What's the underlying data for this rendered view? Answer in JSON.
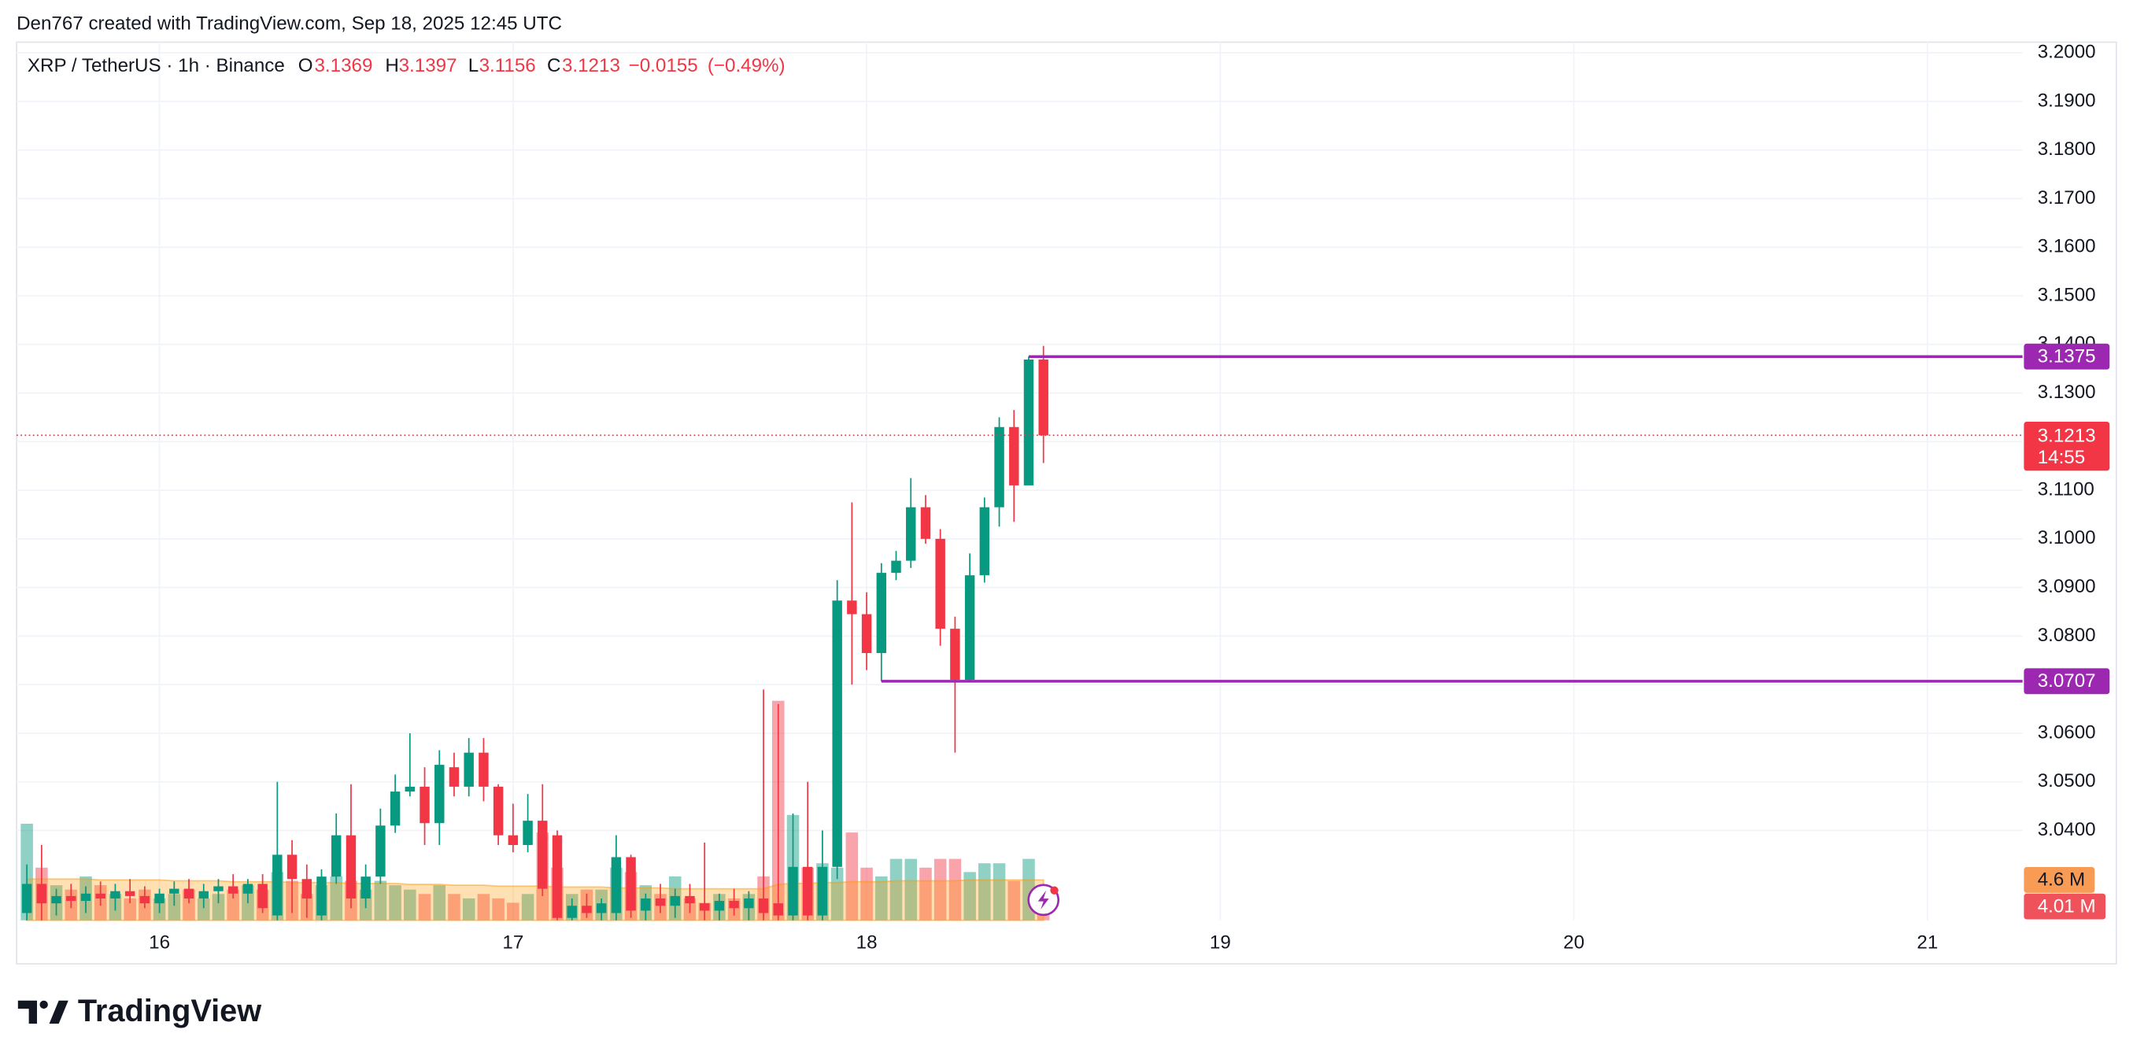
{
  "chart_data": {
    "type": "candlestick",
    "attribution": "Den767 created with TradingView.com, Sep 18, 2025 12:45 UTC",
    "title": "XRP / TetherUS · 1h · Binance",
    "legend": {
      "open_label": "O",
      "open": 3.1369,
      "high_label": "H",
      "high": 3.1397,
      "low_label": "L",
      "low": 3.1156,
      "close_label": "C",
      "close": 3.1213,
      "change": {
        "value": -0.0155,
        "label": "−0.0155"
      },
      "change_pct": {
        "value": -0.49,
        "label": "(−0.49%)"
      }
    },
    "x": [
      15.625,
      15.6667,
      15.7083,
      15.75,
      15.7917,
      15.8333,
      15.875,
      15.9167,
      15.9583,
      16,
      16.0417,
      16.0833,
      16.125,
      16.1667,
      16.2083,
      16.25,
      16.2917,
      16.3333,
      16.375,
      16.4167,
      16.4583,
      16.5,
      16.5417,
      16.5833,
      16.625,
      16.6667,
      16.7083,
      16.75,
      16.7917,
      16.8333,
      16.875,
      16.9167,
      16.9583,
      17,
      17.0417,
      17.0833,
      17.125,
      17.1667,
      17.2083,
      17.25,
      17.2917,
      17.3333,
      17.375,
      17.4167,
      17.4583,
      17.5,
      17.5417,
      17.5833,
      17.625,
      17.6667,
      17.7083,
      17.75,
      17.7917,
      17.8333,
      17.875,
      17.9167,
      17.9583,
      18,
      18.0417,
      18.0833,
      18.125,
      18.1667,
      18.2083,
      18.25,
      18.2917,
      18.3333,
      18.375,
      18.4167,
      18.4583,
      18.5
    ],
    "open": [
      3.023,
      3.029,
      3.025,
      3.0265,
      3.0255,
      3.027,
      3.026,
      3.0275,
      3.0265,
      3.025,
      3.027,
      3.028,
      3.026,
      3.0275,
      3.0285,
      3.027,
      3.029,
      3.0225,
      3.035,
      3.03,
      3.0225,
      3.0305,
      3.039,
      3.026,
      3.0305,
      3.041,
      3.048,
      3.049,
      3.0415,
      3.053,
      3.049,
      3.056,
      3.049,
      3.039,
      3.037,
      3.042,
      3.039,
      3.022,
      3.0245,
      3.023,
      3.023,
      3.0345,
      3.0235,
      3.026,
      3.0245,
      3.0265,
      3.025,
      3.0235,
      3.0255,
      3.024,
      3.026,
      3.025,
      3.0225,
      3.0325,
      3.0225,
      3.0325,
      3.0873,
      3.0845,
      3.0765,
      3.093,
      3.0955,
      3.1065,
      3.1,
      3.0815,
      3.071,
      3.0925,
      3.1065,
      3.123,
      3.111,
      3.1369
    ],
    "high": [
      3.033,
      3.037,
      3.028,
      3.029,
      3.0285,
      3.0295,
      3.029,
      3.03,
      3.0285,
      3.028,
      3.0295,
      3.03,
      3.029,
      3.03,
      3.031,
      3.03,
      3.031,
      3.05,
      3.038,
      3.033,
      3.032,
      3.0435,
      3.0495,
      3.033,
      3.0445,
      3.0515,
      3.06,
      3.053,
      3.0565,
      3.056,
      3.059,
      3.059,
      3.0495,
      3.0455,
      3.0475,
      3.0495,
      3.04,
      3.026,
      3.027,
      3.026,
      3.039,
      3.035,
      3.027,
      3.029,
      3.028,
      3.029,
      3.0375,
      3.027,
      3.028,
      3.0275,
      3.069,
      3.066,
      3.0435,
      3.05,
      3.04,
      3.0915,
      3.1075,
      3.089,
      3.095,
      3.0975,
      3.1125,
      3.109,
      3.102,
      3.084,
      3.097,
      3.1085,
      3.125,
      3.1265,
      3.1375,
      3.1397
    ],
    "low": [
      3.0215,
      3.0215,
      3.0225,
      3.024,
      3.023,
      3.0245,
      3.0235,
      3.025,
      3.024,
      3.023,
      3.0245,
      3.025,
      3.024,
      3.025,
      3.026,
      3.025,
      3.023,
      3.0215,
      3.023,
      3.022,
      3.0215,
      3.029,
      3.024,
      3.024,
      3.029,
      3.0395,
      3.047,
      3.037,
      3.037,
      3.047,
      3.047,
      3.046,
      3.037,
      3.0355,
      3.0355,
      3.0265,
      3.0215,
      3.0215,
      3.022,
      3.0215,
      3.0215,
      3.022,
      3.0215,
      3.023,
      3.022,
      3.023,
      3.0215,
      3.0215,
      3.0225,
      3.0215,
      3.0215,
      3.0215,
      3.0215,
      3.0215,
      3.0215,
      3.03,
      3.07,
      3.073,
      3.0707,
      3.0915,
      3.094,
      3.099,
      3.078,
      3.056,
      3.0707,
      3.091,
      3.1025,
      3.1035,
      3.111,
      3.1156
    ],
    "close": [
      3.029,
      3.025,
      3.0265,
      3.0255,
      3.027,
      3.026,
      3.0275,
      3.0265,
      3.025,
      3.027,
      3.028,
      3.026,
      3.0275,
      3.0285,
      3.027,
      3.029,
      3.024,
      3.035,
      3.03,
      3.026,
      3.0305,
      3.039,
      3.026,
      3.0305,
      3.041,
      3.048,
      3.049,
      3.0415,
      3.0535,
      3.049,
      3.056,
      3.049,
      3.039,
      3.037,
      3.042,
      3.028,
      3.022,
      3.0245,
      3.023,
      3.025,
      3.0345,
      3.0235,
      3.026,
      3.0245,
      3.0265,
      3.025,
      3.0235,
      3.0255,
      3.024,
      3.026,
      3.023,
      3.0225,
      3.0325,
      3.0225,
      3.0325,
      3.0873,
      3.0845,
      3.0765,
      3.093,
      3.0955,
      3.1065,
      3.1,
      3.0815,
      3.071,
      3.0925,
      3.1065,
      3.123,
      3.111,
      3.1369,
      3.1213
    ],
    "volume": [
      11,
      6,
      4,
      3.5,
      5,
      4,
      3,
      2.5,
      3.5,
      2.5,
      3,
      3.5,
      2.5,
      3,
      3.5,
      4,
      3.5,
      5.5,
      4.5,
      3,
      4,
      5,
      4.5,
      3.5,
      4.5,
      4,
      3.5,
      3,
      4,
      3,
      2.5,
      3,
      2.5,
      2,
      3,
      10,
      6,
      3,
      3.5,
      3.5,
      6,
      5.5,
      4,
      3,
      5,
      2.5,
      2,
      3,
      2.5,
      3,
      5,
      25,
      12,
      6,
      6.5,
      6,
      10,
      6,
      5,
      7,
      7,
      6,
      7,
      7,
      5.5,
      6.5,
      6.5,
      4.5,
      7,
      4.01
    ],
    "volume_ma": [
      4.7,
      4.7,
      4.7,
      4.7,
      4.7,
      4.6,
      4.6,
      4.6,
      4.6,
      4.6,
      4.5,
      4.5,
      4.5,
      4.5,
      4.4,
      4.4,
      4.4,
      4.4,
      4.3,
      4.3,
      4.3,
      4.3,
      4.2,
      4.2,
      4.2,
      4.2,
      4.1,
      4.1,
      4.1,
      4.0,
      4.0,
      4.0,
      3.9,
      3.9,
      3.9,
      3.9,
      3.8,
      3.8,
      3.8,
      3.8,
      3.7,
      3.7,
      3.7,
      3.7,
      3.6,
      3.6,
      3.6,
      3.6,
      3.6,
      3.6,
      3.6,
      4.1,
      4.2,
      4.2,
      4.3,
      4.3,
      4.4,
      4.4,
      4.4,
      4.5,
      4.5,
      4.5,
      4.5,
      4.5,
      4.6,
      4.6,
      4.6,
      4.6,
      4.6,
      4.6
    ],
    "volume_ma_label": {
      "value": 4.6,
      "label": "4.6 M"
    },
    "volume_last_label": {
      "value": 4.01,
      "label": "4.01 M"
    },
    "up_color": "#089981",
    "down_color": "#f23645",
    "volume_ma_color": "#ff9800",
    "xlim": [
      15.596,
      21.269
    ],
    "xticks": [
      16,
      17,
      18,
      19,
      20,
      21
    ],
    "ylim": [
      3.0215,
      3.2022
    ],
    "yticks": [
      {
        "value": 3.04,
        "label": "3.0400"
      },
      {
        "value": 3.05,
        "label": "3.0500"
      },
      {
        "value": 3.06,
        "label": "3.0600"
      },
      {
        "value": 3.07,
        "label": "3.0700"
      },
      {
        "value": 3.08,
        "label": "3.0800"
      },
      {
        "value": 3.09,
        "label": "3.0900"
      },
      {
        "value": 3.1,
        "label": "3.1000"
      },
      {
        "value": 3.11,
        "label": "3.1100"
      },
      {
        "value": 3.12,
        "label": "3.1200"
      },
      {
        "value": 3.13,
        "label": "3.1300"
      },
      {
        "value": 3.14,
        "label": "3.1400"
      },
      {
        "value": 3.15,
        "label": "3.1500"
      },
      {
        "value": 3.16,
        "label": "3.1600"
      },
      {
        "value": 3.17,
        "label": "3.1700"
      },
      {
        "value": 3.18,
        "label": "3.1800"
      },
      {
        "value": 3.19,
        "label": "3.1900"
      },
      {
        "value": 3.2,
        "label": "3.2000"
      }
    ],
    "volume_ylim": [
      0,
      100
    ],
    "grid": true,
    "levels": [
      {
        "value": 3.1375,
        "start": 18.4583,
        "color": "#9c27b0"
      },
      {
        "value": 3.0707,
        "start": 18.0417,
        "color": "#9c27b0"
      }
    ],
    "last_price": {
      "value": 3.1213,
      "countdown": "14:55"
    },
    "brand": "TradingView"
  }
}
